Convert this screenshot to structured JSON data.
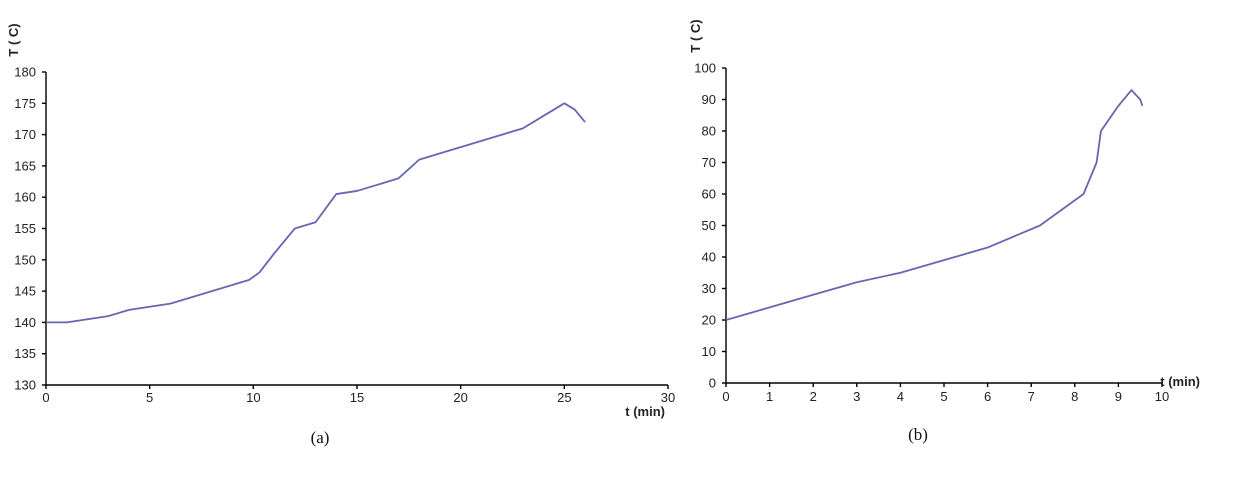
{
  "series_color": "#6666b3",
  "chart_data": [
    {
      "type": "line",
      "id": "a",
      "caption": "(a)",
      "xlabel": "t (min)",
      "ylabel": "T ( C)",
      "xlim": [
        0,
        30
      ],
      "ylim": [
        130,
        180
      ],
      "xticks": [
        0,
        5,
        10,
        15,
        20,
        25,
        30
      ],
      "yticks": [
        130,
        135,
        140,
        145,
        150,
        155,
        160,
        165,
        170,
        175,
        180
      ],
      "grid": false,
      "series": [
        {
          "x": [
            0,
            1,
            2,
            3,
            4,
            5,
            6,
            7,
            8,
            9,
            9.8,
            10.3,
            11,
            12,
            13,
            14,
            15,
            16,
            17,
            18,
            19,
            20,
            21,
            22,
            23,
            24,
            25,
            25.5,
            26
          ],
          "y": [
            140,
            140,
            140.5,
            141,
            142,
            142.5,
            143,
            144,
            145,
            146,
            146.8,
            148,
            151,
            155,
            156,
            160.5,
            161,
            162,
            163,
            166,
            167,
            168,
            169,
            170,
            171,
            173,
            175,
            174,
            172
          ]
        }
      ]
    },
    {
      "type": "line",
      "id": "b",
      "caption": "(b)",
      "xlabel": "t (min)",
      "ylabel": "T ( C)",
      "xlim": [
        0,
        10
      ],
      "ylim": [
        0,
        100
      ],
      "xticks": [
        0,
        1,
        2,
        3,
        4,
        5,
        6,
        7,
        8,
        9,
        10
      ],
      "yticks": [
        0,
        10,
        20,
        30,
        40,
        50,
        60,
        70,
        80,
        90,
        100
      ],
      "grid": false,
      "series": [
        {
          "x": [
            0,
            1,
            2,
            3,
            4,
            5,
            6,
            7.2,
            8.2,
            8.5,
            8.6,
            9,
            9.3,
            9.5,
            9.55
          ],
          "y": [
            20,
            24,
            28,
            32,
            35,
            39,
            43,
            50,
            60,
            70,
            80,
            88,
            93,
            90,
            88
          ]
        }
      ]
    }
  ]
}
